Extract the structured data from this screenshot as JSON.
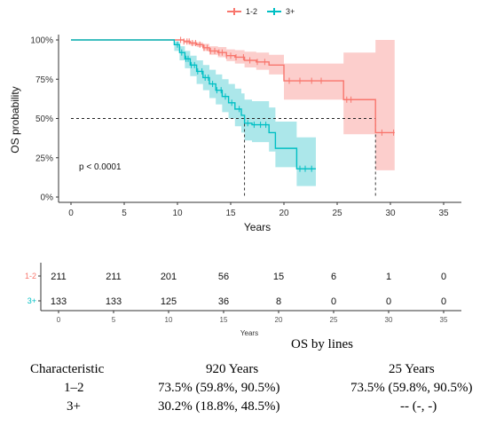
{
  "colors": {
    "g12": "#F8766D",
    "g3": "#00BFC4",
    "g12_band": "#FBC6C3",
    "g3_band": "#9EE3E6"
  },
  "legend": [
    {
      "label": "1-2",
      "color_key": "g12"
    },
    {
      "label": "3+",
      "color_key": "g3"
    }
  ],
  "chart_data": {
    "type": "line",
    "step": true,
    "ylabel": "OS probability",
    "xlabel": "Years",
    "xlim": [
      0,
      35
    ],
    "ylim": [
      0,
      1
    ],
    "x_ticks": [
      0,
      5,
      10,
      15,
      20,
      25,
      30,
      35
    ],
    "y_ticks": [
      {
        "value": 0,
        "label": "0%"
      },
      {
        "value": 0.25,
        "label": "25%"
      },
      {
        "value": 0.5,
        "label": "50%"
      },
      {
        "value": 0.75,
        "label": "75%"
      },
      {
        "value": 1,
        "label": "100%"
      }
    ],
    "pvalue": "p < 0.0001",
    "median_lines": {
      "y": 0.5,
      "x": [
        16.3,
        28.6
      ]
    },
    "series": [
      {
        "name": "1-2",
        "color_key": "g12",
        "band_key": "g12_band",
        "points": [
          [
            0,
            1
          ],
          [
            9.8,
            1
          ],
          [
            10.6,
            0.99
          ],
          [
            11.2,
            0.98
          ],
          [
            11.8,
            0.97
          ],
          [
            12.4,
            0.95
          ],
          [
            13.0,
            0.93
          ],
          [
            13.8,
            0.92
          ],
          [
            14.6,
            0.9
          ],
          [
            15.4,
            0.89
          ],
          [
            16.3,
            0.87
          ],
          [
            17.4,
            0.86
          ],
          [
            18.6,
            0.84
          ],
          [
            20.0,
            0.74
          ],
          [
            25.6,
            0.62
          ],
          [
            28.6,
            0.41
          ],
          [
            30.4,
            0.41
          ]
        ],
        "ci": [
          [
            0,
            1,
            1
          ],
          [
            9.8,
            1,
            1
          ],
          [
            10.6,
            1,
            0.98
          ],
          [
            11.2,
            0.99,
            0.965
          ],
          [
            11.8,
            0.985,
            0.955
          ],
          [
            12.4,
            0.975,
            0.93
          ],
          [
            13.0,
            0.96,
            0.905
          ],
          [
            13.8,
            0.955,
            0.89
          ],
          [
            14.6,
            0.94,
            0.865
          ],
          [
            15.4,
            0.935,
            0.85
          ],
          [
            16.3,
            0.925,
            0.825
          ],
          [
            17.4,
            0.92,
            0.81
          ],
          [
            18.6,
            0.905,
            0.78
          ],
          [
            20.0,
            0.85,
            0.62
          ],
          [
            25.6,
            0.92,
            0.4
          ],
          [
            28.6,
            1,
            0.17
          ],
          [
            30.4,
            1,
            0.17
          ]
        ],
        "censor_x": [
          10.3,
          10.6,
          10.9,
          11.1,
          11.4,
          11.7,
          12.1,
          12.5,
          12.8,
          13.1,
          13.5,
          13.9,
          14.2,
          14.6,
          15.0,
          15.5,
          16.2,
          16.8,
          17.5,
          18.2,
          20.5,
          21.5,
          22.6,
          23.5,
          25.9,
          26.3,
          29.2,
          30.3
        ]
      },
      {
        "name": "3+",
        "color_key": "g3",
        "band_key": "g3_band",
        "points": [
          [
            0,
            1
          ],
          [
            9.2,
            1
          ],
          [
            9.7,
            0.97
          ],
          [
            10.2,
            0.92
          ],
          [
            10.7,
            0.88
          ],
          [
            11.2,
            0.84
          ],
          [
            11.8,
            0.8
          ],
          [
            12.4,
            0.76
          ],
          [
            13.0,
            0.72
          ],
          [
            13.6,
            0.68
          ],
          [
            14.2,
            0.64
          ],
          [
            14.8,
            0.6
          ],
          [
            15.4,
            0.56
          ],
          [
            16.0,
            0.52
          ],
          [
            16.3,
            0.47
          ],
          [
            17.0,
            0.46
          ],
          [
            18.6,
            0.41
          ],
          [
            19.2,
            0.31
          ],
          [
            21.2,
            0.18
          ],
          [
            23.0,
            0.18
          ]
        ],
        "ci": [
          [
            0,
            1,
            1
          ],
          [
            9.2,
            1,
            1
          ],
          [
            9.7,
            0.99,
            0.93
          ],
          [
            10.2,
            0.96,
            0.87
          ],
          [
            10.7,
            0.93,
            0.82
          ],
          [
            11.2,
            0.9,
            0.77
          ],
          [
            11.8,
            0.87,
            0.72
          ],
          [
            12.4,
            0.84,
            0.68
          ],
          [
            13.0,
            0.81,
            0.63
          ],
          [
            13.6,
            0.78,
            0.59
          ],
          [
            14.2,
            0.75,
            0.54
          ],
          [
            14.8,
            0.72,
            0.5
          ],
          [
            15.4,
            0.69,
            0.45
          ],
          [
            16.0,
            0.66,
            0.41
          ],
          [
            16.3,
            0.62,
            0.36
          ],
          [
            17.0,
            0.61,
            0.35
          ],
          [
            18.6,
            0.57,
            0.29
          ],
          [
            19.2,
            0.48,
            0.19
          ],
          [
            21.2,
            0.38,
            0.07
          ],
          [
            23.0,
            0.38,
            0.07
          ]
        ],
        "censor_x": [
          10.0,
          10.4,
          10.8,
          11.0,
          11.3,
          11.6,
          11.9,
          12.3,
          12.6,
          12.9,
          13.3,
          13.7,
          14.1,
          14.5,
          15.1,
          15.8,
          16.6,
          17.2,
          17.8,
          18.3,
          21.5,
          22.0,
          22.6
        ]
      }
    ]
  },
  "risk_table": {
    "xlabel": "Years",
    "x_ticks": [
      0,
      5,
      10,
      15,
      20,
      25,
      30,
      35
    ],
    "rows": [
      {
        "label": "1-2",
        "color_key": "g12",
        "values": [
          "211",
          "211",
          "201",
          "56",
          "15",
          "6",
          "1",
          "0"
        ]
      },
      {
        "label": "3+",
        "color_key": "g3",
        "values": [
          "133",
          "133",
          "125",
          "36",
          "8",
          "0",
          "0",
          "0"
        ]
      }
    ]
  },
  "summary_table": {
    "title": "OS by lines",
    "headers": [
      "Characteristic",
      "920 Years",
      "25 Years"
    ],
    "rows": [
      [
        "1–2",
        "73.5% (59.8%, 90.5%)",
        "73.5% (59.8%, 90.5%)"
      ],
      [
        "3+",
        "30.2% (18.8%, 48.5%)",
        "-- (-, -)"
      ]
    ]
  }
}
